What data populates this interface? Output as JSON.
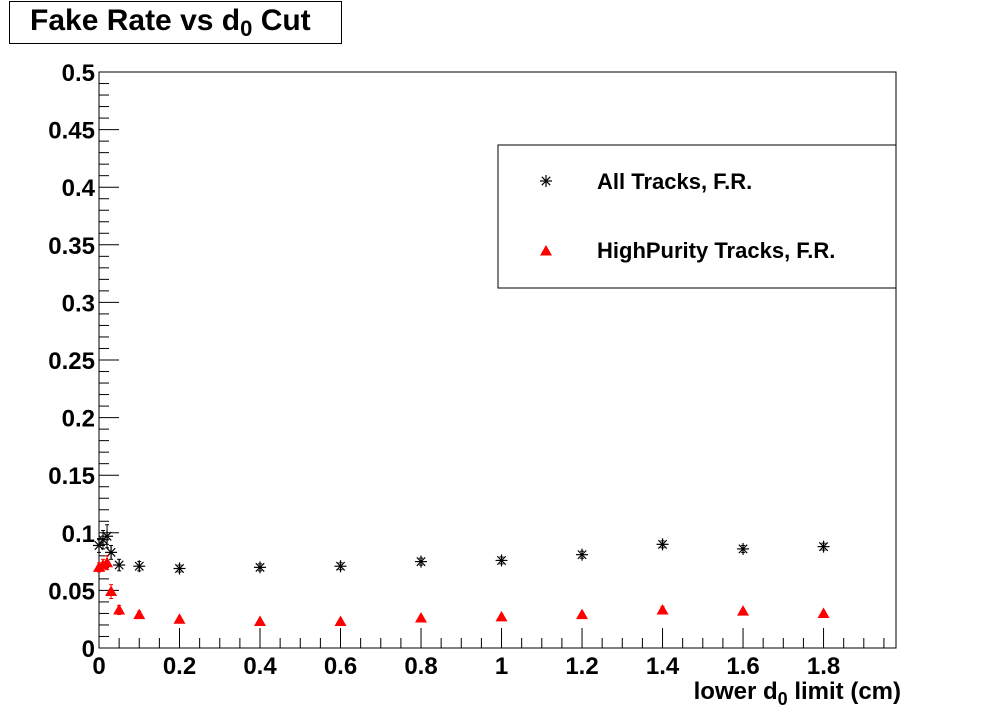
{
  "title_parts": {
    "pre": "Fake Rate vs d",
    "sub": "0",
    "post": " Cut"
  },
  "xlabel_parts": {
    "pre": "lower d",
    "sub": "0",
    "post": " limit (cm)"
  },
  "chart_data": {
    "type": "scatter",
    "title": "Fake Rate vs d0 Cut",
    "xlabel": "lower d0 limit (cm)",
    "ylabel": "",
    "xlim": [
      0,
      1.98
    ],
    "ylim": [
      0,
      0.5
    ],
    "x_ticks": [
      "0",
      "0.2",
      "0.4",
      "0.6",
      "0.8",
      "1",
      "1.2",
      "1.4",
      "1.6",
      "1.8"
    ],
    "y_ticks": [
      "0",
      "0.05",
      "0.1",
      "0.15",
      "0.2",
      "0.25",
      "0.3",
      "0.35",
      "0.4",
      "0.45",
      "0.5"
    ],
    "legend_position": "top-right",
    "series": [
      {
        "name": "All Tracks, F.R.",
        "marker": "asterisk",
        "color": "#000000",
        "points": [
          {
            "x": 0.0,
            "y": 0.089,
            "err": 0.006
          },
          {
            "x": 0.01,
            "y": 0.094,
            "err": 0.008
          },
          {
            "x": 0.02,
            "y": 0.097,
            "err": 0.01
          },
          {
            "x": 0.03,
            "y": 0.083,
            "err": 0.006
          },
          {
            "x": 0.05,
            "y": 0.072,
            "err": 0.005
          },
          {
            "x": 0.1,
            "y": 0.071,
            "err": 0.004
          },
          {
            "x": 0.2,
            "y": 0.069,
            "err": 0.003
          },
          {
            "x": 0.4,
            "y": 0.07,
            "err": 0.003
          },
          {
            "x": 0.6,
            "y": 0.071,
            "err": 0.003
          },
          {
            "x": 0.8,
            "y": 0.075,
            "err": 0.003
          },
          {
            "x": 1.0,
            "y": 0.076,
            "err": 0.003
          },
          {
            "x": 1.2,
            "y": 0.081,
            "err": 0.003
          },
          {
            "x": 1.4,
            "y": 0.09,
            "err": 0.003
          },
          {
            "x": 1.6,
            "y": 0.086,
            "err": 0.003
          },
          {
            "x": 1.8,
            "y": 0.088,
            "err": 0.003
          }
        ]
      },
      {
        "name": "HighPurity Tracks, F.R.",
        "marker": "triangle",
        "color": "#ff0000",
        "points": [
          {
            "x": 0.0,
            "y": 0.07,
            "err": 0.004
          },
          {
            "x": 0.01,
            "y": 0.072,
            "err": 0.005
          },
          {
            "x": 0.02,
            "y": 0.074,
            "err": 0.006
          },
          {
            "x": 0.03,
            "y": 0.049,
            "err": 0.006
          },
          {
            "x": 0.05,
            "y": 0.033,
            "err": 0.004
          },
          {
            "x": 0.1,
            "y": 0.029,
            "err": 0.003
          },
          {
            "x": 0.2,
            "y": 0.025,
            "err": 0.002
          },
          {
            "x": 0.4,
            "y": 0.023,
            "err": 0.002
          },
          {
            "x": 0.6,
            "y": 0.023,
            "err": 0.002
          },
          {
            "x": 0.8,
            "y": 0.026,
            "err": 0.002
          },
          {
            "x": 1.0,
            "y": 0.027,
            "err": 0.002
          },
          {
            "x": 1.2,
            "y": 0.029,
            "err": 0.002
          },
          {
            "x": 1.4,
            "y": 0.033,
            "err": 0.003
          },
          {
            "x": 1.6,
            "y": 0.032,
            "err": 0.002
          },
          {
            "x": 1.8,
            "y": 0.03,
            "err": 0.002
          }
        ]
      }
    ]
  }
}
